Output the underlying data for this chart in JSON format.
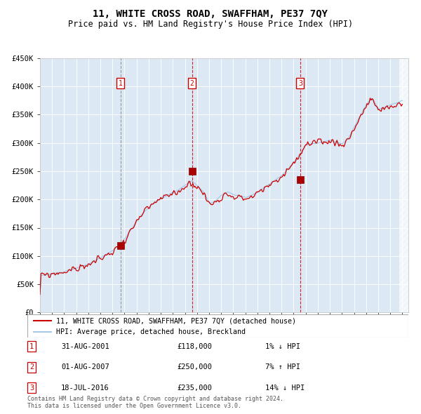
{
  "title": "11, WHITE CROSS ROAD, SWAFFHAM, PE37 7QY",
  "subtitle": "Price paid vs. HM Land Registry's House Price Index (HPI)",
  "y_min": 0,
  "y_max": 450000,
  "y_ticks": [
    0,
    50000,
    100000,
    150000,
    200000,
    250000,
    300000,
    350000,
    400000,
    450000
  ],
  "y_tick_labels": [
    "£0",
    "£50K",
    "£100K",
    "£150K",
    "£200K",
    "£250K",
    "£300K",
    "£350K",
    "£400K",
    "£450K"
  ],
  "hpi_color": "#a8c8e8",
  "price_color": "#cc0000",
  "bg_color": "#dce9f5",
  "sale_year_floats": [
    2001.667,
    2007.583,
    2016.542
  ],
  "sale_prices": [
    118000,
    250000,
    235000
  ],
  "sale_labels": [
    "1",
    "2",
    "3"
  ],
  "sale_vline_colors": [
    "#888888",
    "#cc0000",
    "#cc0000"
  ],
  "sale_info": [
    {
      "label": "1",
      "date": "31-AUG-2001",
      "price": "£118,000",
      "hpi": "1% ↓ HPI"
    },
    {
      "label": "2",
      "date": "01-AUG-2007",
      "price": "£250,000",
      "hpi": "7% ↑ HPI"
    },
    {
      "label": "3",
      "date": "18-JUL-2016",
      "price": "£235,000",
      "hpi": "14% ↓ HPI"
    }
  ],
  "legend_line1": "11, WHITE CROSS ROAD, SWAFFHAM, PE37 7QY (detached house)",
  "legend_line2": "HPI: Average price, detached house, Breckland",
  "footer": "Contains HM Land Registry data © Crown copyright and database right 2024.\nThis data is licensed under the Open Government Licence v3.0.",
  "hpi_waypoints_x": [
    1995.0,
    1996.0,
    1997.0,
    1998.0,
    1999.0,
    2000.0,
    2001.0,
    2001.67,
    2002.5,
    2003.5,
    2004.5,
    2005.5,
    2006.5,
    2007.5,
    2008.0,
    2008.5,
    2009.0,
    2009.5,
    2010.0,
    2010.5,
    2011.0,
    2012.0,
    2013.0,
    2014.0,
    2015.0,
    2016.0,
    2016.58,
    2017.0,
    2018.0,
    2019.0,
    2020.0,
    2020.5,
    2021.0,
    2021.5,
    2022.0,
    2022.5,
    2023.0,
    2023.5,
    2024.0,
    2024.5,
    2025.0
  ],
  "hpi_waypoints_y": [
    65000,
    68000,
    72000,
    77000,
    85000,
    95000,
    108000,
    118000,
    145000,
    175000,
    195000,
    205000,
    215000,
    230000,
    220000,
    210000,
    190000,
    195000,
    205000,
    210000,
    205000,
    200000,
    210000,
    225000,
    240000,
    265000,
    280000,
    295000,
    298000,
    302000,
    295000,
    305000,
    325000,
    345000,
    365000,
    375000,
    355000,
    358000,
    362000,
    366000,
    370000
  ]
}
